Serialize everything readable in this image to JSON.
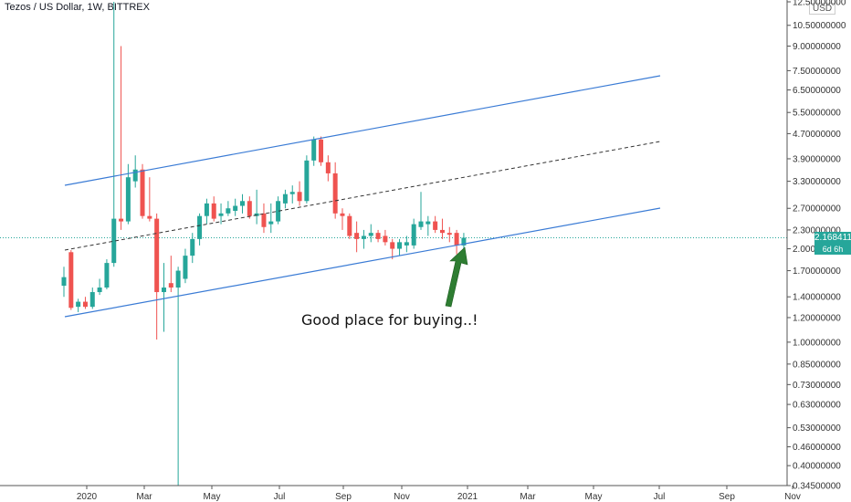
{
  "header": {
    "title": "Tezos / US Dollar, 1W, BITTREX",
    "currency": "USD"
  },
  "last_price": {
    "value": "2.16841114",
    "countdown": "6d 6h"
  },
  "chart_data": {
    "type": "candlestick",
    "yscale": "log",
    "ylim": [
      0.345,
      12.5
    ],
    "y_ticks": [
      "12.50000000",
      "10.50000000",
      "9.00000000",
      "7.50000000",
      "6.50000000",
      "5.50000000",
      "4.70000000",
      "3.90000000",
      "3.30000000",
      "2.70000000",
      "2.30000000",
      "2.00000000",
      "1.70000000",
      "1.40000000",
      "1.20000000",
      "1.00000000",
      "0.85000000",
      "0.73000000",
      "0.63000000",
      "0.53000000",
      "0.46000000",
      "0.40000000",
      "0.34500000"
    ],
    "x_ticks": [
      "2020",
      "Mar",
      "May",
      "Jul",
      "Sep",
      "Nov",
      "2021",
      "Mar",
      "May",
      "Jul",
      "Sep",
      "Nov"
    ],
    "annotation": "Good place for buying..!",
    "colors": {
      "up": "#26a69a",
      "down": "#ef5350",
      "channel": "#3a7bd5",
      "arrow": "#2e7d32"
    },
    "candles": [
      {
        "o": 1.52,
        "h": 1.75,
        "l": 1.4,
        "c": 1.62
      },
      {
        "o": 1.95,
        "h": 1.98,
        "l": 1.27,
        "c": 1.29
      },
      {
        "o": 1.3,
        "h": 1.38,
        "l": 1.25,
        "c": 1.35
      },
      {
        "o": 1.35,
        "h": 1.4,
        "l": 1.28,
        "c": 1.3
      },
      {
        "o": 1.3,
        "h": 1.5,
        "l": 1.28,
        "c": 1.45
      },
      {
        "o": 1.45,
        "h": 1.6,
        "l": 1.42,
        "c": 1.5
      },
      {
        "o": 1.5,
        "h": 1.85,
        "l": 1.48,
        "c": 1.8
      },
      {
        "o": 1.8,
        "h": 12.5,
        "l": 1.75,
        "c": 2.5
      },
      {
        "o": 2.5,
        "h": 9.0,
        "l": 2.3,
        "c": 2.45
      },
      {
        "o": 2.45,
        "h": 3.75,
        "l": 2.4,
        "c": 3.4
      },
      {
        "o": 3.3,
        "h": 4.0,
        "l": 3.15,
        "c": 3.6
      },
      {
        "o": 3.6,
        "h": 3.75,
        "l": 2.5,
        "c": 2.55
      },
      {
        "o": 2.55,
        "h": 3.4,
        "l": 2.45,
        "c": 2.5
      },
      {
        "o": 2.5,
        "h": 2.6,
        "l": 1.02,
        "c": 1.45
      },
      {
        "o": 1.45,
        "h": 1.8,
        "l": 1.08,
        "c": 1.5
      },
      {
        "o": 1.55,
        "h": 1.9,
        "l": 1.45,
        "c": 1.5
      },
      {
        "o": 1.5,
        "h": 1.75,
        "l": 0.345,
        "c": 1.7
      },
      {
        "o": 1.6,
        "h": 2.0,
        "l": 1.55,
        "c": 1.9
      },
      {
        "o": 1.9,
        "h": 2.25,
        "l": 1.8,
        "c": 2.15
      },
      {
        "o": 2.15,
        "h": 2.6,
        "l": 2.05,
        "c": 2.55
      },
      {
        "o": 2.55,
        "h": 2.9,
        "l": 2.4,
        "c": 2.8
      },
      {
        "o": 2.8,
        "h": 2.95,
        "l": 2.45,
        "c": 2.5
      },
      {
        "o": 2.55,
        "h": 2.8,
        "l": 2.4,
        "c": 2.6
      },
      {
        "o": 2.6,
        "h": 2.85,
        "l": 2.55,
        "c": 2.7
      },
      {
        "o": 2.65,
        "h": 2.9,
        "l": 2.55,
        "c": 2.75
      },
      {
        "o": 2.75,
        "h": 3.0,
        "l": 2.6,
        "c": 2.85
      },
      {
        "o": 2.85,
        "h": 2.95,
        "l": 2.5,
        "c": 2.55
      },
      {
        "o": 2.55,
        "h": 3.1,
        "l": 2.4,
        "c": 2.6
      },
      {
        "o": 2.6,
        "h": 2.8,
        "l": 2.25,
        "c": 2.35
      },
      {
        "o": 2.4,
        "h": 2.8,
        "l": 2.25,
        "c": 2.45
      },
      {
        "o": 2.45,
        "h": 2.95,
        "l": 2.4,
        "c": 2.85
      },
      {
        "o": 2.8,
        "h": 3.1,
        "l": 2.7,
        "c": 3.0
      },
      {
        "o": 3.0,
        "h": 3.2,
        "l": 2.8,
        "c": 3.05
      },
      {
        "o": 3.05,
        "h": 3.3,
        "l": 2.75,
        "c": 2.85
      },
      {
        "o": 2.85,
        "h": 4.0,
        "l": 2.8,
        "c": 3.85
      },
      {
        "o": 3.85,
        "h": 4.6,
        "l": 3.7,
        "c": 4.5
      },
      {
        "o": 4.5,
        "h": 4.6,
        "l": 3.7,
        "c": 3.8
      },
      {
        "o": 3.8,
        "h": 4.0,
        "l": 3.3,
        "c": 3.5
      },
      {
        "o": 3.5,
        "h": 3.8,
        "l": 2.5,
        "c": 2.6
      },
      {
        "o": 2.6,
        "h": 2.7,
        "l": 2.3,
        "c": 2.55
      },
      {
        "o": 2.55,
        "h": 2.6,
        "l": 2.15,
        "c": 2.2
      },
      {
        "o": 2.25,
        "h": 2.45,
        "l": 1.95,
        "c": 2.15
      },
      {
        "o": 2.15,
        "h": 2.3,
        "l": 2.0,
        "c": 2.2
      },
      {
        "o": 2.2,
        "h": 2.4,
        "l": 2.1,
        "c": 2.25
      },
      {
        "o": 2.25,
        "h": 2.3,
        "l": 2.1,
        "c": 2.15
      },
      {
        "o": 2.2,
        "h": 2.3,
        "l": 2.05,
        "c": 2.1
      },
      {
        "o": 2.1,
        "h": 2.15,
        "l": 1.85,
        "c": 2.0
      },
      {
        "o": 2.0,
        "h": 2.15,
        "l": 1.9,
        "c": 2.1
      },
      {
        "o": 2.05,
        "h": 2.2,
        "l": 1.95,
        "c": 2.1
      },
      {
        "o": 2.05,
        "h": 2.5,
        "l": 2.0,
        "c": 2.4
      },
      {
        "o": 2.35,
        "h": 3.05,
        "l": 2.3,
        "c": 2.45
      },
      {
        "o": 2.4,
        "h": 2.55,
        "l": 2.2,
        "c": 2.45
      },
      {
        "o": 2.45,
        "h": 2.55,
        "l": 2.25,
        "c": 2.3
      },
      {
        "o": 2.3,
        "h": 2.5,
        "l": 2.15,
        "c": 2.25
      },
      {
        "o": 2.25,
        "h": 2.35,
        "l": 2.1,
        "c": 2.22
      },
      {
        "o": 2.25,
        "h": 2.3,
        "l": 1.92,
        "c": 2.05
      },
      {
        "o": 2.05,
        "h": 2.25,
        "l": 2.0,
        "c": 2.17
      }
    ]
  }
}
